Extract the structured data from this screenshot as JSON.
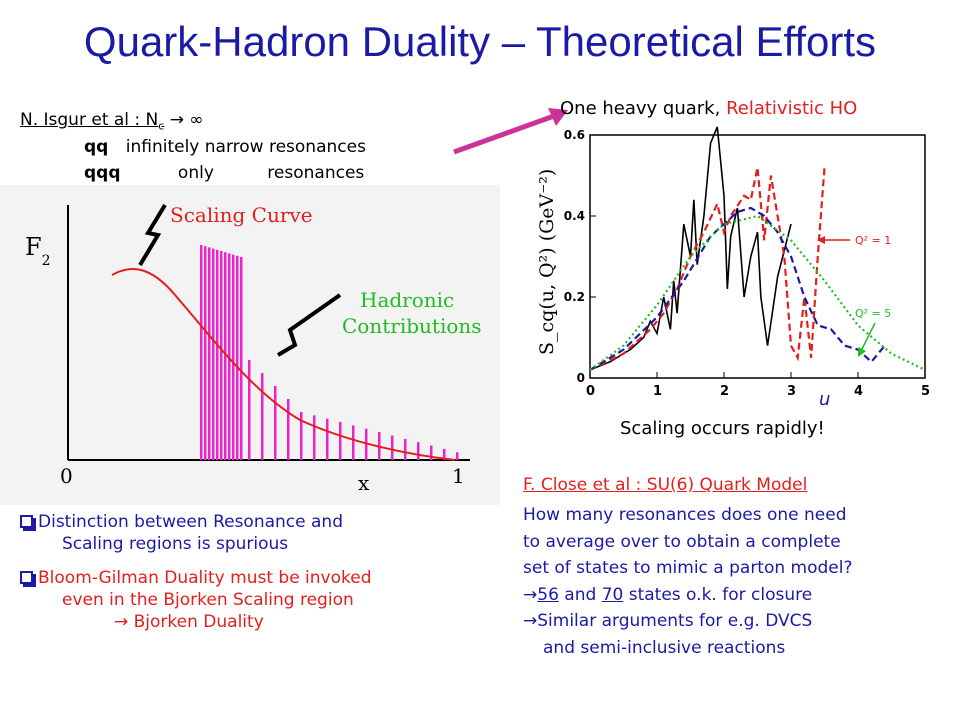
{
  "slide": {
    "title": "Quark-Hadron Duality – Theoretical Efforts"
  },
  "isgur": {
    "heading_prefix": "N. Isgur et al : N",
    "heading_sub": "c",
    "heading_suffix": "→ ∞",
    "row1_key": "qq",
    "row1_text": "infinitely narrow resonances",
    "row2_key": "qqq",
    "row2_mid": "only",
    "row2_text": "resonances"
  },
  "left_figure": {
    "y_label": "F",
    "y_label_sub": "2",
    "scaling_curve_label": "Scaling Curve",
    "hadronic_label_1": "Hadronic",
    "hadronic_label_2": "Contributions",
    "x_label": "x",
    "tick_0": "0",
    "tick_1": "1"
  },
  "heavy_quark": {
    "label_black": "One heavy quark,",
    "label_red": "Relativistic HO"
  },
  "chart_data": {
    "type": "line",
    "ylabel": "S_cq(u, Q²) (GeV⁻²)",
    "xlabel": "u",
    "xlim": [
      0,
      5
    ],
    "ylim": [
      0,
      0.6
    ],
    "x_ticks": [
      "0",
      "1",
      "2",
      "3",
      "4",
      "5"
    ],
    "y_ticks": [
      "0",
      "0.2",
      "0.4",
      "0.6"
    ],
    "annotations": [
      "Q² = 1",
      "Q² = 5"
    ],
    "series": [
      {
        "name": "",
        "style": "solid",
        "color": "#000000",
        "x": [
          0,
          0.3,
          0.6,
          0.8,
          0.9,
          1.0,
          1.1,
          1.2,
          1.25,
          1.3,
          1.4,
          1.5,
          1.55,
          1.6,
          1.7,
          1.8,
          1.9,
          2.0,
          2.05,
          2.1,
          2.2,
          2.3,
          2.4,
          2.5,
          2.55,
          2.65,
          2.8,
          3.0
        ],
        "y": [
          0.02,
          0.04,
          0.07,
          0.1,
          0.14,
          0.11,
          0.2,
          0.12,
          0.24,
          0.16,
          0.38,
          0.3,
          0.44,
          0.28,
          0.4,
          0.58,
          0.62,
          0.45,
          0.22,
          0.35,
          0.42,
          0.2,
          0.3,
          0.36,
          0.2,
          0.08,
          0.25,
          0.38
        ]
      },
      {
        "name": "",
        "style": "dashed",
        "color": "#e41e1e",
        "x": [
          0,
          0.5,
          0.9,
          1.1,
          1.3,
          1.5,
          1.7,
          1.9,
          2.0,
          2.1,
          2.3,
          2.4,
          2.5,
          2.6,
          2.7,
          2.9,
          3.0,
          3.1,
          3.2,
          3.3,
          3.4,
          3.5
        ],
        "y": [
          0.02,
          0.06,
          0.12,
          0.16,
          0.22,
          0.3,
          0.36,
          0.43,
          0.36,
          0.4,
          0.45,
          0.44,
          0.52,
          0.34,
          0.5,
          0.3,
          0.08,
          0.05,
          0.2,
          0.05,
          0.3,
          0.52
        ]
      },
      {
        "name": "",
        "style": "dashed",
        "color": "#1a1aa6",
        "x": [
          0,
          0.5,
          1.0,
          1.4,
          1.8,
          2.0,
          2.2,
          2.4,
          2.6,
          2.8,
          3.0,
          3.2,
          3.4,
          3.6,
          3.8,
          4.0,
          4.2,
          4.4
        ],
        "y": [
          0.02,
          0.07,
          0.15,
          0.24,
          0.35,
          0.38,
          0.41,
          0.42,
          0.4,
          0.36,
          0.3,
          0.2,
          0.13,
          0.12,
          0.08,
          0.07,
          0.04,
          0.08
        ]
      },
      {
        "name": "",
        "style": "dotted",
        "color": "#22bb22",
        "x": [
          0,
          0.5,
          1.0,
          1.5,
          2.0,
          2.5,
          3.0,
          3.5,
          4.0,
          4.5,
          5.0
        ],
        "y": [
          0.02,
          0.08,
          0.18,
          0.3,
          0.38,
          0.4,
          0.34,
          0.24,
          0.13,
          0.06,
          0.02
        ]
      }
    ]
  },
  "scaling_rapidly": "Scaling occurs rapidly!",
  "bullets": [
    {
      "line1": "Distinction between Resonance and",
      "line2": "Scaling regions is spurious"
    },
    {
      "line1": "Bloom-Gilman Duality must be invoked",
      "line2": "even in the Bjorken Scaling region",
      "line3": "→ Bjorken Duality"
    }
  ],
  "close": {
    "heading": "F. Close et al : SU(6) Quark Model",
    "line1": "How many resonances does one need",
    "line2": "to average over to obtain a complete",
    "line3": "set of states to mimic a parton model?",
    "line4_arrow": "→",
    "line4_a": "56",
    "line4_mid": "and",
    "line4_b": "70",
    "line4_rest": "states o.k. for closure",
    "line5_arrow": "→",
    "line5_text": "Similar arguments for e.g. DVCS",
    "line6_text": "and semi-inclusive reactions"
  },
  "colors": {
    "title_blue": "#1a1aa6",
    "accent_red": "#e41e1e",
    "magenta": "#cc3399",
    "bar_magenta": "#ee22cc",
    "green": "#22bb22"
  }
}
